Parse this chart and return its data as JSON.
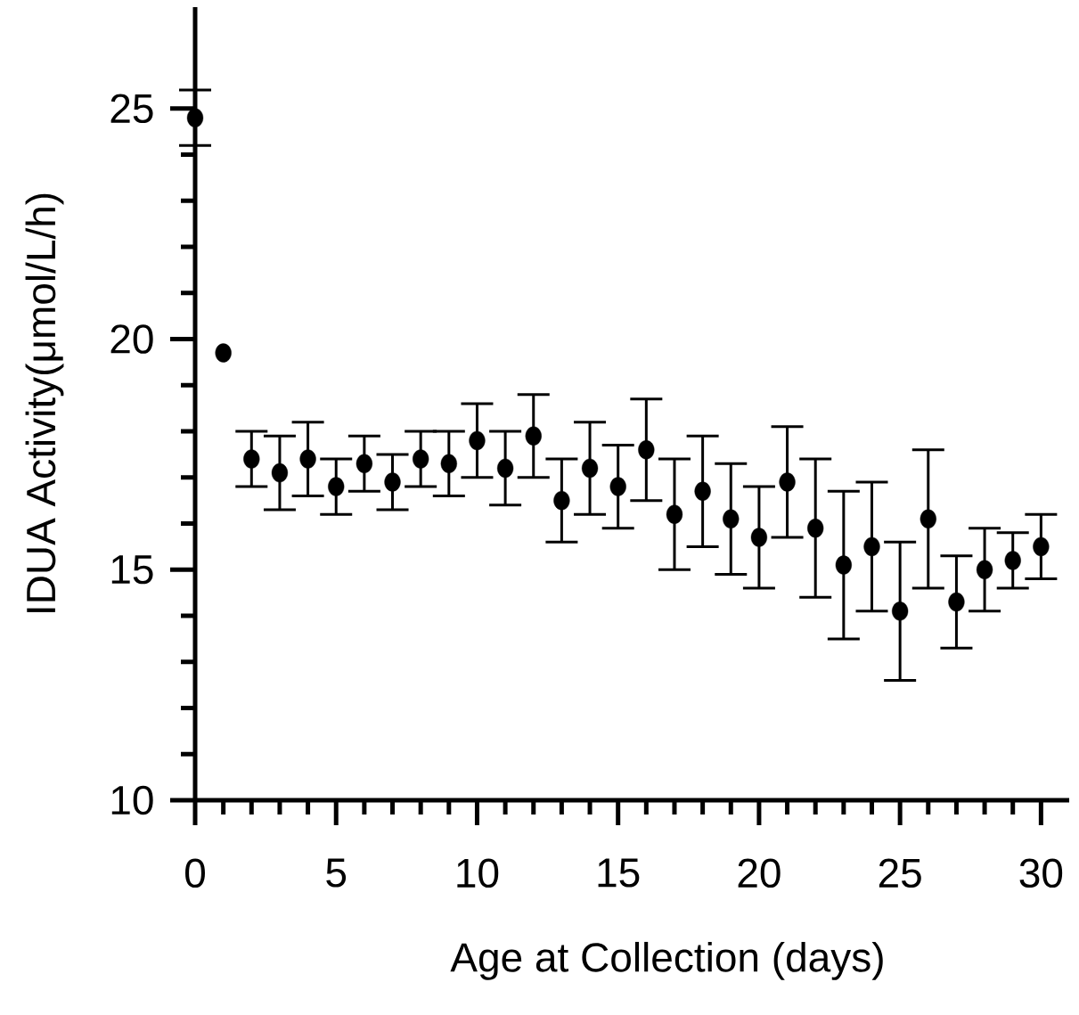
{
  "chart_data": {
    "type": "scatter",
    "xlabel": "Age at Collection (days)",
    "ylabel": "IDUA Activity(μmol/L/h)",
    "x": [
      0,
      1,
      2,
      3,
      4,
      5,
      6,
      7,
      8,
      9,
      10,
      11,
      12,
      13,
      14,
      15,
      16,
      17,
      18,
      19,
      20,
      21,
      22,
      23,
      24,
      25,
      26,
      27,
      28,
      29,
      30
    ],
    "series": [
      {
        "color": "#000000",
        "values": [
          24.8,
          19.7,
          17.4,
          17.1,
          17.4,
          16.8,
          17.3,
          16.9,
          17.4,
          17.3,
          17.8,
          17.2,
          17.9,
          16.5,
          17.2,
          16.8,
          17.6,
          16.2,
          16.7,
          16.1,
          15.7,
          16.9,
          15.9,
          15.1,
          15.5,
          14.1,
          16.1,
          14.3,
          15.0,
          15.2,
          15.5
        ],
        "errors": [
          0.6,
          null,
          0.6,
          0.8,
          0.8,
          0.6,
          0.6,
          0.6,
          0.6,
          0.7,
          0.8,
          0.8,
          0.9,
          0.9,
          1.0,
          0.9,
          1.1,
          1.2,
          1.2,
          1.2,
          1.1,
          1.2,
          1.5,
          1.6,
          1.4,
          1.5,
          1.5,
          1.0,
          0.9,
          0.6,
          0.7
        ]
      }
    ],
    "xlim": [
      0,
      31
    ],
    "ylim": [
      10,
      27.2
    ],
    "xticks": [
      0,
      5,
      10,
      15,
      20,
      25,
      30
    ],
    "yticks": [
      10,
      15,
      20,
      25
    ],
    "marker": "circle"
  }
}
